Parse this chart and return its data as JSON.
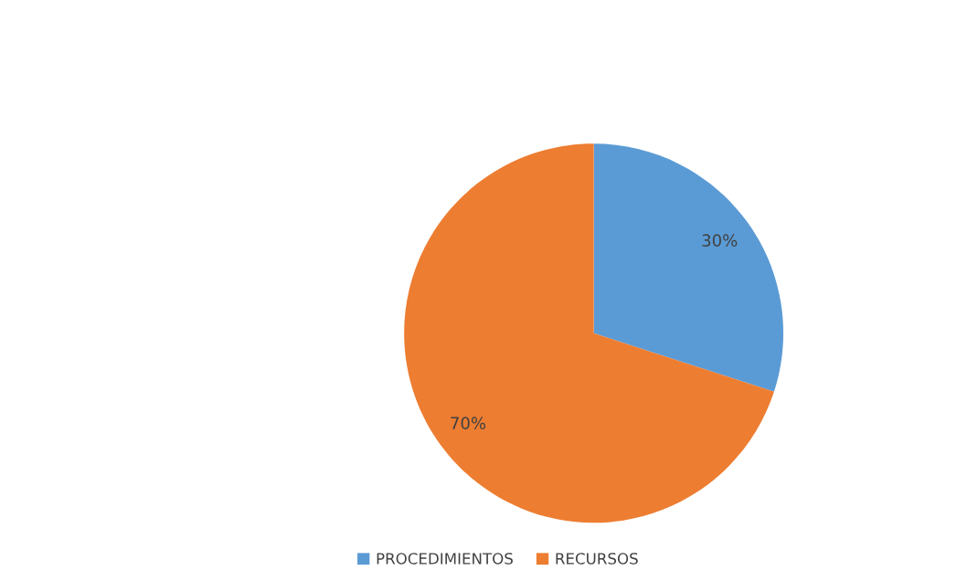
{
  "chart_data": {
    "type": "pie",
    "categories": [
      "PROCEDIMIENTOS",
      "RECURSOS"
    ],
    "values": [
      30,
      70
    ],
    "colors": [
      "#5b9bd5",
      "#ed7d31"
    ],
    "value_labels": [
      "30%",
      "70%"
    ],
    "legend": "bottom"
  }
}
